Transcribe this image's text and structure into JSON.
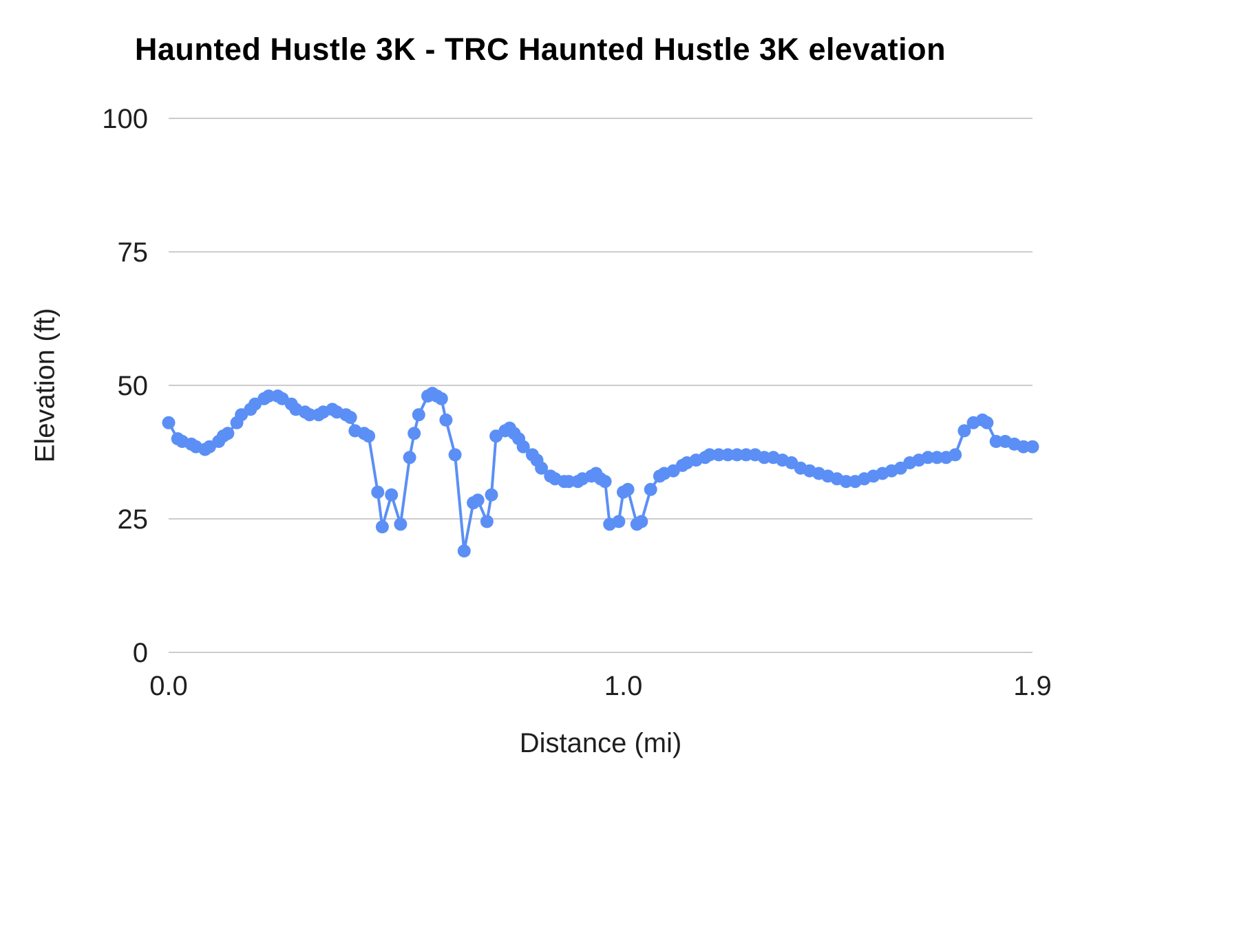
{
  "chart_data": {
    "type": "line",
    "title": "Haunted Hustle 3K - TRC Haunted Hustle 3K elevation",
    "xlabel": "Distance (mi)",
    "ylabel": "Elevation (ft)",
    "xlim": [
      0,
      1.9
    ],
    "ylim": [
      0,
      100
    ],
    "y_ticks": [
      0,
      25,
      50,
      75,
      100
    ],
    "y_tick_labels": [
      "0",
      "25",
      "50",
      "75",
      "100"
    ],
    "x_ticks": [
      0.0,
      1.0,
      1.9
    ],
    "x_tick_labels": [
      "0.0",
      "1.0",
      "1.9"
    ],
    "grid": "horizontal",
    "legend": "none",
    "series_name": "elevation",
    "series_color": "#5b8ff5",
    "grid_color": "#cccccc",
    "text_color": "#1f1f1f",
    "points": [
      [
        0.0,
        43
      ],
      [
        0.02,
        40
      ],
      [
        0.03,
        39.5
      ],
      [
        0.05,
        39
      ],
      [
        0.06,
        38.5
      ],
      [
        0.08,
        38
      ],
      [
        0.09,
        38.5
      ],
      [
        0.11,
        39.5
      ],
      [
        0.12,
        40.5
      ],
      [
        0.13,
        41
      ],
      [
        0.15,
        43
      ],
      [
        0.16,
        44.5
      ],
      [
        0.18,
        45.5
      ],
      [
        0.19,
        46.5
      ],
      [
        0.21,
        47.5
      ],
      [
        0.22,
        48
      ],
      [
        0.24,
        48
      ],
      [
        0.25,
        47.5
      ],
      [
        0.27,
        46.5
      ],
      [
        0.28,
        45.5
      ],
      [
        0.3,
        45
      ],
      [
        0.31,
        44.5
      ],
      [
        0.33,
        44.5
      ],
      [
        0.34,
        45
      ],
      [
        0.36,
        45.5
      ],
      [
        0.37,
        45
      ],
      [
        0.39,
        44.5
      ],
      [
        0.4,
        44
      ],
      [
        0.41,
        41.5
      ],
      [
        0.43,
        41
      ],
      [
        0.44,
        40.5
      ],
      [
        0.46,
        30
      ],
      [
        0.47,
        23.5
      ],
      [
        0.49,
        29.5
      ],
      [
        0.51,
        24
      ],
      [
        0.53,
        36.5
      ],
      [
        0.54,
        41
      ],
      [
        0.55,
        44.5
      ],
      [
        0.57,
        48
      ],
      [
        0.58,
        48.5
      ],
      [
        0.59,
        48
      ],
      [
        0.6,
        47.5
      ],
      [
        0.61,
        43.5
      ],
      [
        0.63,
        37
      ],
      [
        0.65,
        19
      ],
      [
        0.67,
        28
      ],
      [
        0.68,
        28.5
      ],
      [
        0.7,
        24.5
      ],
      [
        0.71,
        29.5
      ],
      [
        0.72,
        40.5
      ],
      [
        0.74,
        41.5
      ],
      [
        0.75,
        42
      ],
      [
        0.76,
        41
      ],
      [
        0.77,
        40
      ],
      [
        0.78,
        38.5
      ],
      [
        0.8,
        37
      ],
      [
        0.81,
        36
      ],
      [
        0.82,
        34.5
      ],
      [
        0.84,
        33
      ],
      [
        0.85,
        32.5
      ],
      [
        0.87,
        32
      ],
      [
        0.88,
        32
      ],
      [
        0.9,
        32
      ],
      [
        0.91,
        32.5
      ],
      [
        0.93,
        33
      ],
      [
        0.94,
        33.5
      ],
      [
        0.95,
        32.5
      ],
      [
        0.96,
        32
      ],
      [
        0.97,
        24
      ],
      [
        0.99,
        24.5
      ],
      [
        1.0,
        30
      ],
      [
        1.01,
        30.5
      ],
      [
        1.03,
        24
      ],
      [
        1.04,
        24.5
      ],
      [
        1.06,
        30.5
      ],
      [
        1.08,
        33
      ],
      [
        1.09,
        33.5
      ],
      [
        1.11,
        34
      ],
      [
        1.13,
        35
      ],
      [
        1.14,
        35.5
      ],
      [
        1.16,
        36
      ],
      [
        1.18,
        36.5
      ],
      [
        1.19,
        37
      ],
      [
        1.21,
        37
      ],
      [
        1.23,
        37
      ],
      [
        1.25,
        37
      ],
      [
        1.27,
        37
      ],
      [
        1.29,
        37
      ],
      [
        1.31,
        36.5
      ],
      [
        1.33,
        36.5
      ],
      [
        1.35,
        36
      ],
      [
        1.37,
        35.5
      ],
      [
        1.39,
        34.5
      ],
      [
        1.41,
        34
      ],
      [
        1.43,
        33.5
      ],
      [
        1.45,
        33
      ],
      [
        1.47,
        32.5
      ],
      [
        1.49,
        32
      ],
      [
        1.51,
        32
      ],
      [
        1.53,
        32.5
      ],
      [
        1.55,
        33
      ],
      [
        1.57,
        33.5
      ],
      [
        1.59,
        34
      ],
      [
        1.61,
        34.5
      ],
      [
        1.63,
        35.5
      ],
      [
        1.65,
        36
      ],
      [
        1.67,
        36.5
      ],
      [
        1.69,
        36.5
      ],
      [
        1.71,
        36.5
      ],
      [
        1.73,
        37
      ],
      [
        1.75,
        41.5
      ],
      [
        1.77,
        43
      ],
      [
        1.79,
        43.5
      ],
      [
        1.8,
        43
      ],
      [
        1.82,
        39.5
      ],
      [
        1.84,
        39.5
      ],
      [
        1.86,
        39
      ],
      [
        1.88,
        38.5
      ],
      [
        1.9,
        38.5
      ]
    ]
  }
}
